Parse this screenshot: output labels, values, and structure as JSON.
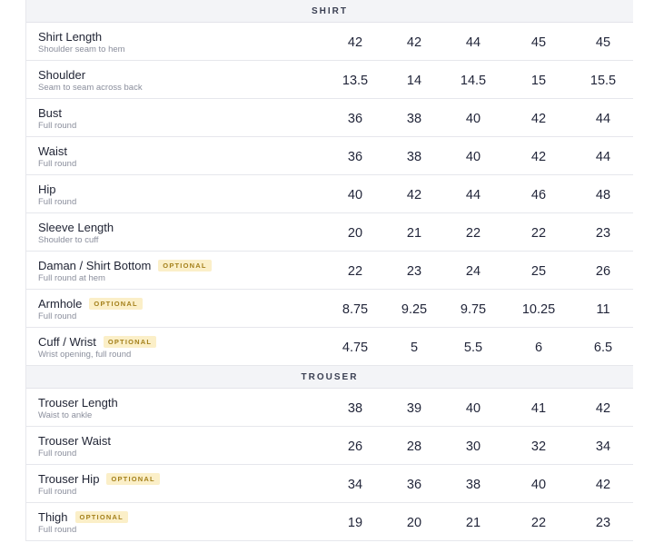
{
  "sections": [
    {
      "title": "SHIRT",
      "rows": [
        {
          "label": "Shirt Length",
          "sublabel": "Shoulder seam to hem",
          "values": [
            42,
            42,
            44,
            45,
            45
          ]
        },
        {
          "label": "Shoulder",
          "sublabel": "Seam to seam across back",
          "values": [
            13.5,
            14,
            14.5,
            15,
            15.5
          ]
        },
        {
          "label": "Bust",
          "sublabel": "Full round",
          "values": [
            36,
            38,
            40,
            42,
            44
          ]
        },
        {
          "label": "Waist",
          "sublabel": "Full round",
          "values": [
            36,
            38,
            40,
            42,
            44
          ]
        },
        {
          "label": "Hip",
          "sublabel": "Full round",
          "values": [
            40,
            42,
            44,
            46,
            48
          ]
        },
        {
          "label": "Sleeve Length",
          "sublabel": "Shoulder to cuff",
          "values": [
            20,
            21,
            22,
            22,
            23
          ]
        },
        {
          "label": "Daman / Shirt Bottom",
          "badge": "OPTIONAL",
          "sublabel": "Full round at hem",
          "values": [
            22,
            23,
            24,
            25,
            26
          ]
        },
        {
          "label": "Armhole",
          "badge": "OPTIONAL",
          "sublabel": "Full round",
          "values": [
            8.75,
            9.25,
            9.75,
            10.25,
            11
          ]
        },
        {
          "label": "Cuff / Wrist",
          "badge": "OPTIONAL",
          "sublabel": "Wrist opening, full round",
          "values": [
            4.75,
            5,
            5.5,
            6,
            6.5
          ]
        }
      ]
    },
    {
      "title": "TROUSER",
      "rows": [
        {
          "label": "Trouser Length",
          "sublabel": "Waist to ankle",
          "values": [
            38,
            39,
            40,
            41,
            42
          ]
        },
        {
          "label": "Trouser Waist",
          "sublabel": "Full round",
          "values": [
            26,
            28,
            30,
            32,
            34
          ]
        },
        {
          "label": "Trouser Hip",
          "badge": "OPTIONAL",
          "sublabel": "Full round",
          "values": [
            34,
            36,
            38,
            40,
            42
          ]
        },
        {
          "label": "Thigh",
          "badge": "OPTIONAL",
          "sublabel": "Full round",
          "values": [
            19,
            20,
            21,
            22,
            23
          ]
        }
      ]
    }
  ]
}
